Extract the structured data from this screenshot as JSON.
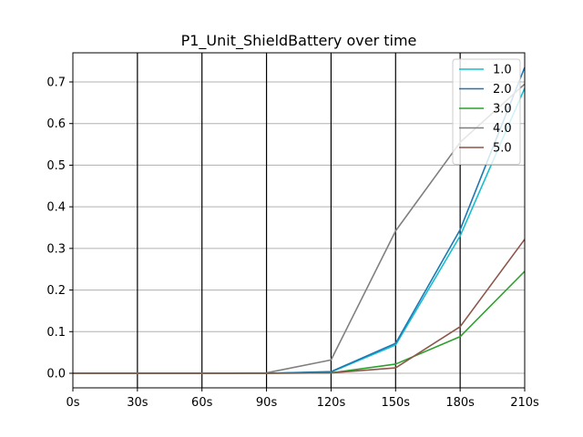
{
  "chart_data": {
    "type": "line",
    "title": "P1_Unit_ShieldBattery over time",
    "xlabel": "",
    "ylabel": "",
    "x": [
      0,
      30,
      60,
      90,
      120,
      150,
      180,
      210
    ],
    "x_tick_labels": [
      "0s",
      "30s",
      "60s",
      "90s",
      "120s",
      "150s",
      "180s",
      "210s"
    ],
    "xlim": [
      0,
      210
    ],
    "ylim": [
      -0.035,
      0.77
    ],
    "y_ticks": [
      0.0,
      0.1,
      0.2,
      0.3,
      0.4,
      0.5,
      0.6,
      0.7
    ],
    "y_tick_labels": [
      "0.0",
      "0.1",
      "0.2",
      "0.3",
      "0.4",
      "0.5",
      "0.6",
      "0.7"
    ],
    "grid": "y-axis horizontal gray; x-axis vertical black",
    "legend_position": "top-right",
    "series": [
      {
        "name": "1.0",
        "color": "#17becf",
        "values": [
          0,
          0,
          0,
          0,
          0.003,
          0.068,
          0.33,
          0.685
        ]
      },
      {
        "name": "2.0",
        "color": "#1f77b4",
        "values": [
          0,
          0,
          0,
          0,
          0.004,
          0.072,
          0.345,
          0.735
        ]
      },
      {
        "name": "3.0",
        "color": "#2ca02c",
        "values": [
          0,
          0,
          0,
          0,
          0.001,
          0.022,
          0.088,
          0.245
        ]
      },
      {
        "name": "4.0",
        "color": "#7f7f7f",
        "values": [
          0,
          0,
          0,
          0.001,
          0.032,
          0.342,
          0.555,
          0.695
        ]
      },
      {
        "name": "5.0",
        "color": "#8c564b",
        "values": [
          0,
          0,
          0,
          0,
          0.001,
          0.013,
          0.112,
          0.322
        ]
      }
    ]
  }
}
